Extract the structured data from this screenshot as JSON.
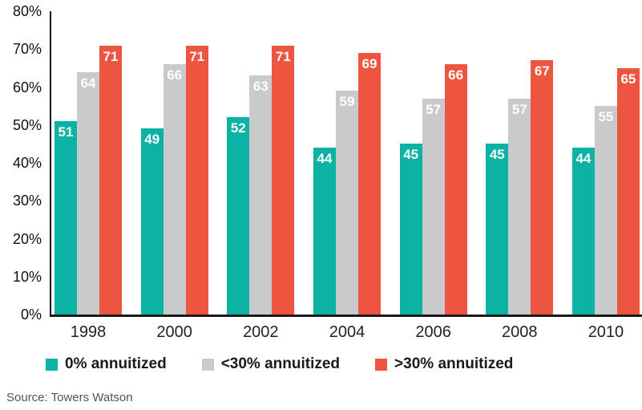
{
  "source": "Source: Towers Watson",
  "colors": {
    "teal": "#0cb2a3",
    "gray": "#c9cacb",
    "red": "#ee5541",
    "axis": "#1a1a1a",
    "value_label": "#ffffff"
  },
  "chart_data": {
    "type": "bar",
    "categories": [
      "1998",
      "2000",
      "2002",
      "2004",
      "2006",
      "2008",
      "2010"
    ],
    "series": [
      {
        "name": "0% annuitized",
        "color": "#0cb2a3",
        "values": [
          51,
          49,
          52,
          44,
          45,
          45,
          44
        ]
      },
      {
        "name": "<30% annuitized",
        "color": "#c9cacb",
        "values": [
          64,
          66,
          63,
          59,
          57,
          57,
          55
        ]
      },
      {
        "name": ">30% annuitized",
        "color": "#ee5541",
        "values": [
          71,
          71,
          71,
          69,
          66,
          67,
          65
        ]
      }
    ],
    "title": "",
    "xlabel": "",
    "ylabel": "",
    "ylim": [
      0,
      80
    ],
    "ytick_step": 10,
    "ytick_labels": [
      "0%",
      "10%",
      "20%",
      "30%",
      "40%",
      "50%",
      "60%",
      "70%",
      "80%"
    ],
    "grid": false,
    "legend_position": "bottom",
    "value_labels": true
  }
}
